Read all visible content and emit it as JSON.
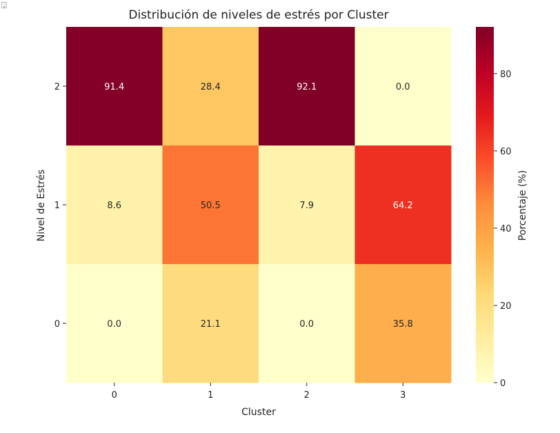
{
  "corner_icon": "expand-output-icon",
  "chart_data": {
    "type": "heatmap",
    "title": "Distribución de niveles de estrés por Cluster",
    "xlabel": "Cluster",
    "ylabel": "Nivel de Estrés",
    "x_categories": [
      "0",
      "1",
      "2",
      "3"
    ],
    "y_categories_top_to_bottom": [
      "2",
      "1",
      "0"
    ],
    "values": [
      [
        91.4,
        28.4,
        92.1,
        0.0
      ],
      [
        8.6,
        50.5,
        7.9,
        64.2
      ],
      [
        0.0,
        21.1,
        0.0,
        35.8
      ]
    ],
    "value_format": "0.0",
    "colormap": "YlOrRd",
    "colorbar": {
      "label": "Porcentaje (%)",
      "range": [
        0,
        92.1
      ],
      "ticks": [
        0,
        20,
        40,
        60,
        80
      ],
      "tick_labels": [
        "0",
        "20",
        "40",
        "60",
        "80"
      ]
    },
    "legend_placement": "right"
  }
}
